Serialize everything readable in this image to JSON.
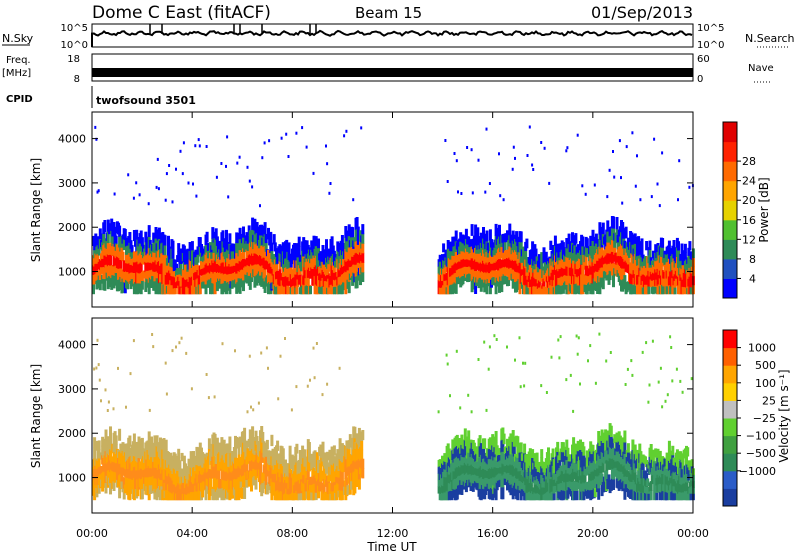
{
  "header": {
    "station": "Dome C East (fitACF)",
    "beam": "Beam 15",
    "date": "01/Sep/2013"
  },
  "panels": {
    "nsky_label": "N.Sky",
    "nsky_ticks": [
      "10^5",
      "10^0"
    ],
    "nsearch_label": "N.Search",
    "nsearch_ticks": [
      "10^5",
      "10^0"
    ],
    "freq_label": "Freq.",
    "freq_unit": "[MHz]",
    "freq_ticks": [
      "18",
      "8"
    ],
    "nave_label": "Nave",
    "nave_ticks": [
      "60",
      "0"
    ],
    "cpid_label": "CPID",
    "cpid_value": "twofsound 3501"
  },
  "chart_data": [
    {
      "type": "heatmap",
      "name": "power",
      "ylabel": "Slant Range [km]",
      "xlabel": "",
      "yticks": [
        "1000",
        "2000",
        "3000",
        "4000"
      ],
      "ylim": [
        200,
        4600
      ],
      "colorbar": {
        "label": "Power [dB]",
        "ticks": [
          "4",
          "8",
          "12",
          "16",
          "20",
          "24",
          "28"
        ],
        "colors": [
          "#0000ff",
          "#2050c0",
          "#2e8b57",
          "#50c030",
          "#e6d200",
          "#ffa500",
          "#ff6a00",
          "#ff2200",
          "#e00000"
        ]
      },
      "bands": [
        {
          "t0": 0.0,
          "t1": 10.8,
          "r0": 500,
          "r1": 2500,
          "colors": [
            "#ff0000",
            "#ff6a00",
            "#2e8b57",
            "#0000ff"
          ]
        },
        {
          "t0": 13.8,
          "t1": 24.0,
          "r0": 500,
          "r1": 2300,
          "colors": [
            "#ff0000",
            "#ff6a00",
            "#2e8b57",
            "#0000ff"
          ]
        }
      ]
    },
    {
      "type": "heatmap",
      "name": "velocity",
      "ylabel": "Slant Range [km]",
      "xlabel": "Time UT",
      "yticks": [
        "1000",
        "2000",
        "3000",
        "4000"
      ],
      "ylim": [
        200,
        4600
      ],
      "xticks": [
        "00:00",
        "04:00",
        "08:00",
        "12:00",
        "16:00",
        "20:00",
        "00:00"
      ],
      "colorbar": {
        "label": "Velocity [m s⁻¹]",
        "ticks": [
          "1000",
          "500",
          "100",
          "25",
          "−25",
          "−100",
          "−500",
          "−1000"
        ],
        "colors": [
          "#1a3ea0",
          "#2a5cc8",
          "#2e8b57",
          "#3fa040",
          "#60d030",
          "#c0c0c0",
          "#ffd000",
          "#ffa500",
          "#ff6000",
          "#ff0000"
        ]
      },
      "bands": [
        {
          "t0": 0.0,
          "t1": 10.8,
          "r0": 500,
          "r1": 2500,
          "colors": [
            "#ff8c1a",
            "#ffa500",
            "#c8b060"
          ]
        },
        {
          "t0": 13.8,
          "t1": 24.0,
          "r0": 500,
          "r1": 2300,
          "colors": [
            "#2e8b57",
            "#3a9a6a",
            "#1a3ea0",
            "#60d030"
          ]
        }
      ]
    }
  ]
}
